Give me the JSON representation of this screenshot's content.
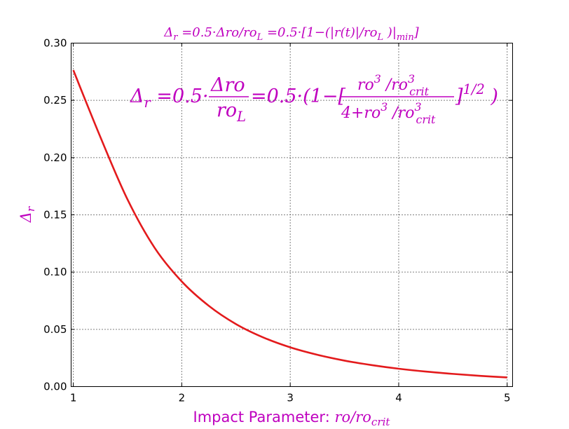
{
  "chart_data": {
    "type": "line",
    "title": "Δ_r =0.5·Δro/ro_L =0.5·[1−(|r(t)|/ro_L )|_min]",
    "xlabel": "Impact Parameter: ro/ro_crit",
    "xlabel_prefix": "Impact Parameter: ",
    "ylabel": "Δ_r",
    "annotation": "Δ_r =0.5·Δro/ro_L=0.5·(1−[ro³ /ro³_crit / (4+ro³ /ro³_crit)]^1/2 )",
    "xlim": [
      0.98,
      5.05
    ],
    "ylim": [
      0.0,
      0.3
    ],
    "xticks": [
      "1",
      "2",
      "3",
      "4",
      "5"
    ],
    "yticks": [
      "0.00",
      "0.05",
      "0.10",
      "0.15",
      "0.20",
      "0.25",
      "0.30"
    ],
    "grid": true,
    "series": [
      {
        "color": "#e31a1c",
        "x": [
          1.0,
          1.25,
          1.5,
          1.75,
          2.0,
          2.25,
          2.5,
          2.75,
          3.0,
          3.25,
          3.5,
          3.75,
          4.0,
          4.25,
          4.5,
          4.75,
          5.0
        ],
        "y": [
          0.2764,
          0.2179,
          0.1634,
          0.1212,
          0.0918,
          0.0705,
          0.0546,
          0.043,
          0.0343,
          0.0278,
          0.0227,
          0.0188,
          0.0156,
          0.0131,
          0.0111,
          0.0094,
          0.008
        ]
      }
    ]
  }
}
